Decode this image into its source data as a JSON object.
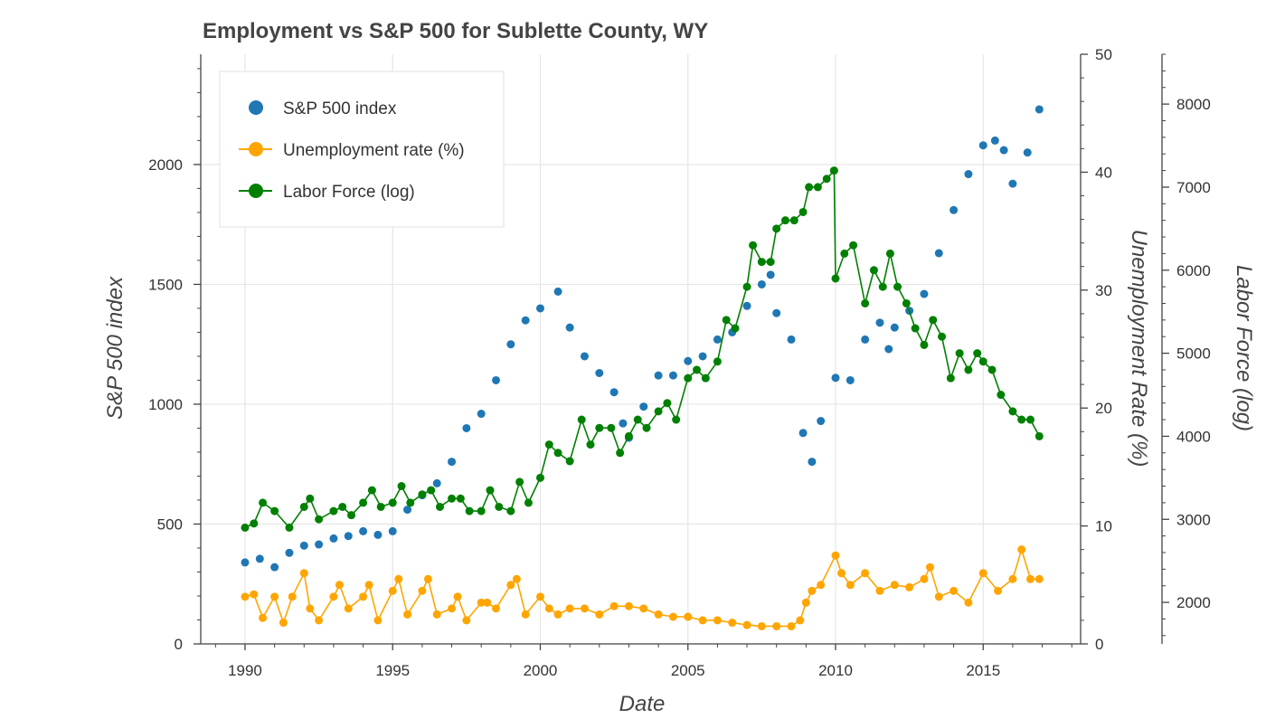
{
  "chart_data": {
    "type": "line",
    "title": "Employment vs S&P 500 for Sublette County, WY",
    "xlabel": "Date",
    "x_ticks": [
      1990,
      1995,
      2000,
      2005,
      2010,
      2015
    ],
    "xlim": [
      1988.5,
      2018.3
    ],
    "axes": {
      "left": {
        "label": "S&P 500 index",
        "ylim": [
          0,
          2460
        ],
        "major_ticks": [
          0,
          500,
          1000,
          1500,
          2000
        ],
        "minor_step": 100
      },
      "right1": {
        "label": "Unemployment Rate (%)",
        "ylim": [
          0,
          50
        ],
        "major_ticks": [
          0,
          10,
          20,
          30,
          40,
          50
        ],
        "minor_step": 2
      },
      "right2": {
        "label": "Labor Force (log)",
        "ylim": [
          1500,
          8600
        ],
        "major_ticks": [
          2000,
          3000,
          4000,
          5000,
          6000,
          7000,
          8000
        ],
        "minor_step": 200
      }
    },
    "legend": {
      "placement": "top-left",
      "entries": [
        {
          "label": "S&P 500 index",
          "color": "#1f77b4",
          "style": "marker"
        },
        {
          "label": "Unemployment rate (%)",
          "color": "#ffa500",
          "style": "line-marker"
        },
        {
          "label": "Labor Force (log)",
          "color": "#008000",
          "style": "line-marker"
        }
      ]
    },
    "grid": true,
    "series": [
      {
        "name": "S&P 500 index",
        "axis": "left",
        "color": "#1f77b4",
        "style": "marker",
        "x": [
          1990.0,
          1990.5,
          1991.0,
          1991.5,
          1992.0,
          1992.5,
          1993.0,
          1993.5,
          1994.0,
          1994.5,
          1995.0,
          1995.5,
          1996.0,
          1996.5,
          1997.0,
          1997.5,
          1998.0,
          1998.5,
          1999.0,
          1999.5,
          2000.0,
          2000.6,
          2001.0,
          2001.5,
          2002.0,
          2002.5,
          2002.8,
          2003.0,
          2003.5,
          2004.0,
          2004.5,
          2005.0,
          2005.5,
          2006.0,
          2006.5,
          2007.0,
          2007.5,
          2007.8,
          2008.0,
          2008.5,
          2008.9,
          2009.2,
          2009.5,
          2010.0,
          2010.5,
          2011.0,
          2011.5,
          2011.8,
          2012.0,
          2012.5,
          2013.0,
          2013.5,
          2014.0,
          2014.5,
          2015.0,
          2015.4,
          2015.7,
          2016.0,
          2016.5,
          2016.9
        ],
        "y": [
          340,
          355,
          320,
          380,
          410,
          415,
          440,
          450,
          470,
          455,
          470,
          560,
          620,
          670,
          760,
          900,
          960,
          1100,
          1250,
          1350,
          1400,
          1470,
          1320,
          1200,
          1130,
          1050,
          920,
          860,
          990,
          1120,
          1120,
          1180,
          1200,
          1270,
          1300,
          1410,
          1500,
          1540,
          1380,
          1270,
          880,
          760,
          930,
          1110,
          1100,
          1270,
          1340,
          1230,
          1320,
          1390,
          1460,
          1630,
          1810,
          1960,
          2080,
          2100,
          2060,
          1920,
          2050,
          2230
        ]
      },
      {
        "name": "Unemployment rate (%)",
        "axis": "right1",
        "color": "#ffa500",
        "style": "line-marker",
        "x": [
          1990.0,
          1990.3,
          1990.6,
          1991.0,
          1991.3,
          1991.6,
          1992.0,
          1992.2,
          1992.5,
          1993.0,
          1993.2,
          1993.5,
          1994.0,
          1994.2,
          1994.5,
          1995.0,
          1995.2,
          1995.5,
          1996.0,
          1996.2,
          1996.5,
          1997.0,
          1997.2,
          1997.5,
          1998.0,
          1998.2,
          1998.5,
          1999.0,
          1999.2,
          1999.5,
          2000.0,
          2000.3,
          2000.6,
          2001.0,
          2001.5,
          2002.0,
          2002.5,
          2003.0,
          2003.5,
          2004.0,
          2004.5,
          2005.0,
          2005.5,
          2006.0,
          2006.5,
          2007.0,
          2007.5,
          2008.0,
          2008.5,
          2008.8,
          2009.0,
          2009.2,
          2009.5,
          2010.0,
          2010.2,
          2010.5,
          2011.0,
          2011.5,
          2012.0,
          2012.5,
          2013.0,
          2013.2,
          2013.5,
          2014.0,
          2014.5,
          2015.0,
          2015.5,
          2016.0,
          2016.3,
          2016.6,
          2016.9
        ],
        "y": [
          4.0,
          4.2,
          2.2,
          4.0,
          1.8,
          4.0,
          6.0,
          3.0,
          2.0,
          4.0,
          5.0,
          3.0,
          4.0,
          5.0,
          2.0,
          4.5,
          5.5,
          2.5,
          4.5,
          5.5,
          2.5,
          3.0,
          4.0,
          2.0,
          3.5,
          3.5,
          3.0,
          5.0,
          5.5,
          2.5,
          4.0,
          3.0,
          2.5,
          3.0,
          3.0,
          2.5,
          3.2,
          3.2,
          3.0,
          2.5,
          2.3,
          2.3,
          2.0,
          2.0,
          1.8,
          1.6,
          1.5,
          1.5,
          1.5,
          2.0,
          3.5,
          4.5,
          5.0,
          7.5,
          6.0,
          5.0,
          6.0,
          4.5,
          5.0,
          4.8,
          5.5,
          6.5,
          4.0,
          4.5,
          3.5,
          6.0,
          4.5,
          5.5,
          8.0,
          5.5,
          5.5
        ]
      },
      {
        "name": "Labor Force (log)",
        "axis": "right2",
        "color": "#008000",
        "style": "line-marker",
        "x": [
          1990.0,
          1990.3,
          1990.6,
          1991.0,
          1991.5,
          1992.0,
          1992.2,
          1992.5,
          1993.0,
          1993.3,
          1993.6,
          1994.0,
          1994.3,
          1994.6,
          1995.0,
          1995.3,
          1995.6,
          1996.0,
          1996.3,
          1996.6,
          1997.0,
          1997.3,
          1997.6,
          1998.0,
          1998.3,
          1998.6,
          1999.0,
          1999.3,
          1999.6,
          2000.0,
          2000.3,
          2000.6,
          2001.0,
          2001.4,
          2001.7,
          2002.0,
          2002.4,
          2002.7,
          2003.0,
          2003.3,
          2003.6,
          2004.0,
          2004.3,
          2004.6,
          2005.0,
          2005.3,
          2005.6,
          2006.0,
          2006.3,
          2006.6,
          2007.0,
          2007.2,
          2007.5,
          2007.8,
          2008.0,
          2008.3,
          2008.6,
          2008.9,
          2009.1,
          2009.4,
          2009.7,
          2009.95,
          2010.0,
          2010.3,
          2010.6,
          2011.0,
          2011.3,
          2011.6,
          2011.85,
          2012.1,
          2012.4,
          2012.7,
          2013.0,
          2013.3,
          2013.6,
          2013.9,
          2014.2,
          2014.5,
          2014.8,
          2015.0,
          2015.3,
          2015.6,
          2016.0,
          2016.3,
          2016.6,
          2016.9
        ],
        "y": [
          2900,
          2950,
          3200,
          3100,
          2900,
          3150,
          3250,
          3000,
          3100,
          3150,
          3050,
          3200,
          3350,
          3150,
          3200,
          3400,
          3200,
          3300,
          3350,
          3150,
          3250,
          3250,
          3100,
          3100,
          3350,
          3150,
          3100,
          3450,
          3200,
          3500,
          3900,
          3800,
          3700,
          4200,
          3900,
          4100,
          4100,
          3800,
          4000,
          4200,
          4100,
          4300,
          4400,
          4200,
          4700,
          4800,
          4700,
          4900,
          5400,
          5300,
          5800,
          6300,
          6100,
          6100,
          6500,
          6600,
          6600,
          6700,
          7000,
          7000,
          7100,
          7200,
          5900,
          6200,
          6300,
          5600,
          6000,
          5800,
          6200,
          5800,
          5600,
          5300,
          5100,
          5400,
          5200,
          4700,
          5000,
          4800,
          5000,
          4900,
          4800,
          4500,
          4300,
          4200,
          4200,
          4000
        ]
      }
    ]
  }
}
